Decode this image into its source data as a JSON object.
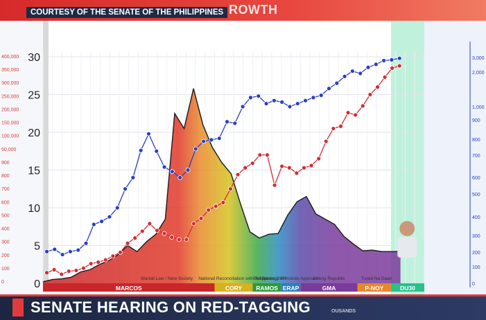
{
  "banner": {
    "title": "ROWTH",
    "courtesy": "COURTESY OF THE SENATE OF THE PHILIPPINES"
  },
  "lower_third": {
    "headline": "SENATE HEARING ON RED-TAGGING",
    "fragment": "OUSANDS"
  },
  "chart_data": {
    "type": "line",
    "ylim": [
      0,
      30
    ],
    "y_ticks": [
      0,
      5,
      10,
      15,
      20,
      25,
      30
    ],
    "left_secondary_ticks": [
      "400,000",
      "350,000",
      "300,000",
      "250,000",
      "200,000",
      "150,000",
      "100,000",
      "50,000",
      "900",
      "800",
      "700",
      "600",
      "500",
      "400",
      "300",
      "200",
      "100",
      "0"
    ],
    "right_secondary_ticks": [
      "3,000",
      "2,000",
      "1,000",
      "900",
      "800",
      "700",
      "600",
      "500",
      "400",
      "300",
      "200",
      "100",
      "0"
    ],
    "eras": [
      {
        "label": "MARCOS",
        "start": 0,
        "end": 18,
        "color": "#c8262a"
      },
      {
        "label": "CORY",
        "start": 18,
        "end": 22,
        "color": "#d6b21e"
      },
      {
        "label": "RAMOS",
        "start": 22,
        "end": 25,
        "color": "#2c9a3c"
      },
      {
        "label": "ERAP",
        "start": 25,
        "end": 27,
        "color": "#2c7ec4"
      },
      {
        "label": "GMA",
        "start": 27,
        "end": 33,
        "color": "#7b3a9c"
      },
      {
        "label": "P-NOY",
        "start": 33,
        "end": 36.5,
        "color": "#e8872a"
      },
      {
        "label": "DU30",
        "start": 36.5,
        "end": 40,
        "color": "#2bbf8c"
      }
    ],
    "era_annotations": [
      "Martial Law / New Society",
      "National Reconciliation with Justice",
      "Philippines 2000",
      "Strategy of Holistic Approach",
      "Strong Republic",
      "Tuwid Na Daan"
    ],
    "area_series": [
      0.2,
      0.5,
      0.6,
      0.8,
      1.5,
      1.8,
      2.5,
      3.0,
      3.8,
      5.0,
      4.2,
      5.5,
      6.5,
      8.5,
      22.5,
      20.5,
      25.8,
      21.0,
      18.0,
      16.0,
      14.5,
      10.5,
      6.8,
      6.0,
      6.5,
      6.6,
      9.0,
      10.8,
      11.5,
      9.2,
      8.5,
      7.8,
      6.2,
      5.2,
      4.3,
      4.4,
      4.2,
      4.2,
      4.2
    ],
    "series": [
      {
        "color": "#2a3fc2",
        "values": [
          4.2,
          4.5,
          3.8,
          4.2,
          4.4,
          5.3,
          7.8,
          8.2,
          8.8,
          10.0,
          12.5,
          14.0,
          17.6,
          19.8,
          17.5,
          15.4,
          14.8,
          14.0,
          15.0,
          17.8,
          18.8,
          19.0,
          19.2,
          21.4,
          21.2,
          23.4,
          24.6,
          24.8,
          23.8,
          24.2,
          24.0,
          23.4,
          23.8,
          24.2,
          24.6,
          24.9,
          25.8,
          26.5,
          27.4,
          28.1,
          27.8,
          28.6,
          29.0,
          29.5,
          29.6,
          29.8
        ]
      },
      {
        "color": "#d62a32",
        "values": [
          1.4,
          1.8,
          1.2,
          1.6,
          1.7,
          2.0,
          2.6,
          2.8,
          3.1,
          3.6,
          4.1,
          5.3,
          6.0,
          6.9,
          7.9,
          7.0,
          6.6,
          6.1,
          5.8,
          5.8,
          7.9,
          8.6,
          9.7,
          10.2,
          10.7,
          12.5,
          14.4,
          15.3,
          15.9,
          17.0,
          17.0,
          13.0,
          15.5,
          15.3,
          14.6,
          15.3,
          15.6,
          16.5,
          18.8,
          20.5,
          20.8,
          22.6,
          22.3,
          23.5,
          25.0,
          26.0,
          27.3,
          28.5,
          28.8
        ]
      }
    ]
  }
}
